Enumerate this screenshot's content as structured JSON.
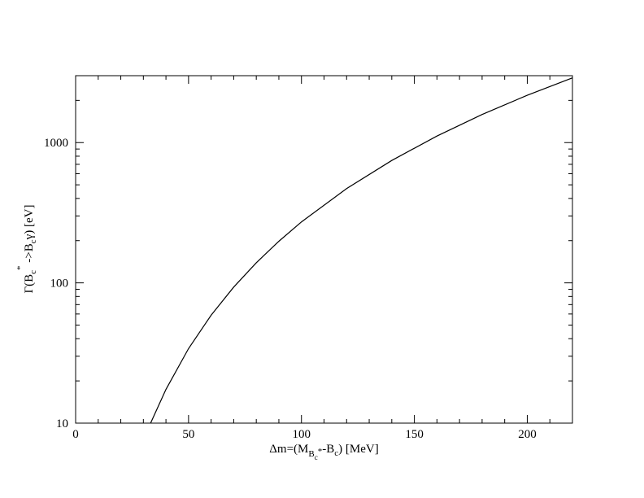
{
  "chart_data": {
    "type": "line",
    "x_label_parts": [
      "Δm=(M",
      "B",
      "c",
      "*",
      "-B",
      "c",
      ") [MeV]"
    ],
    "y_label_parts": [
      "Γ(B",
      "c",
      "*",
      " ->B",
      "c",
      "γ) [eV]"
    ],
    "x": [
      33.2,
      40,
      50,
      60,
      70,
      80,
      90,
      100,
      120,
      140,
      160,
      180,
      200,
      220
    ],
    "series": [
      {
        "color": "#000000",
        "values": [
          10,
          17.4,
          34,
          58.8,
          93.3,
          139,
          198,
          272,
          470,
          746,
          1114,
          1586,
          2176,
          2896
        ]
      }
    ],
    "xlim": [
      0,
      220
    ],
    "xticks": [
      0,
      50,
      100,
      150,
      200
    ],
    "xminor_ticks": [
      10,
      20,
      30,
      40,
      60,
      70,
      80,
      90,
      110,
      120,
      130,
      140,
      160,
      170,
      180,
      190,
      210
    ],
    "ylim": [
      10,
      3000
    ],
    "yticks": [
      10,
      100,
      1000
    ],
    "log_y": true,
    "yminor_ticks": [
      20,
      30,
      40,
      50,
      60,
      70,
      80,
      90,
      200,
      300,
      400,
      500,
      600,
      700,
      800,
      900,
      2000
    ]
  }
}
